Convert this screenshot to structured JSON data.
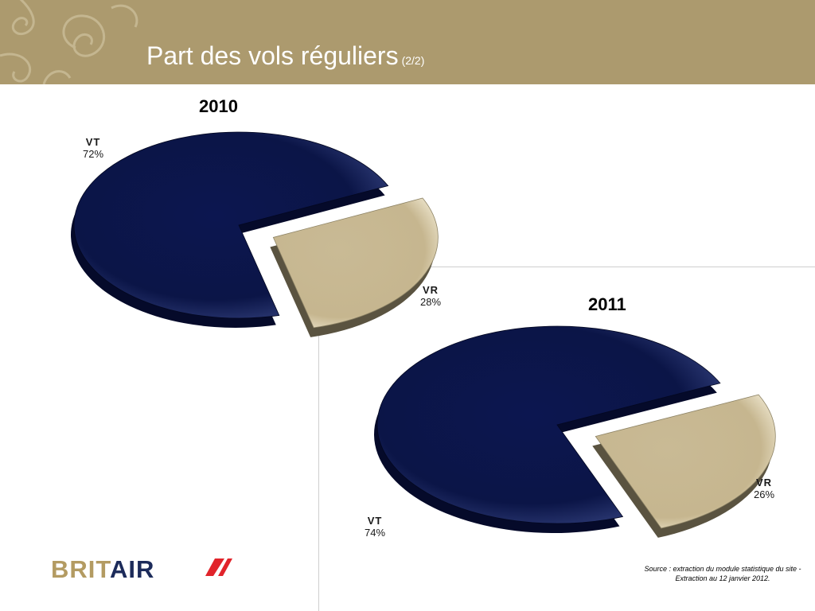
{
  "header": {
    "title": "Part des vols réguliers",
    "subtitle": "(2/2)"
  },
  "chart_data": [
    {
      "type": "pie",
      "title": "2010",
      "categories": [
        "VT",
        "VR"
      ],
      "values": [
        72,
        28
      ],
      "labels": [
        "72%",
        "28%"
      ],
      "colors": [
        "#0b1547",
        "#c8b993"
      ]
    },
    {
      "type": "pie",
      "title": "2011",
      "categories": [
        "VT",
        "VR"
      ],
      "values": [
        74,
        26
      ],
      "labels": [
        "74%",
        "26%"
      ],
      "colors": [
        "#0b1547",
        "#c8b993"
      ]
    }
  ],
  "logo": {
    "part1": "BRIT",
    "part2": "AIR"
  },
  "source": "Source : extraction du module statistique du site - Extraction au 12 janvier 2012.",
  "colors": {
    "header": "#ac9a6e",
    "logo_red": "#e1242b"
  }
}
